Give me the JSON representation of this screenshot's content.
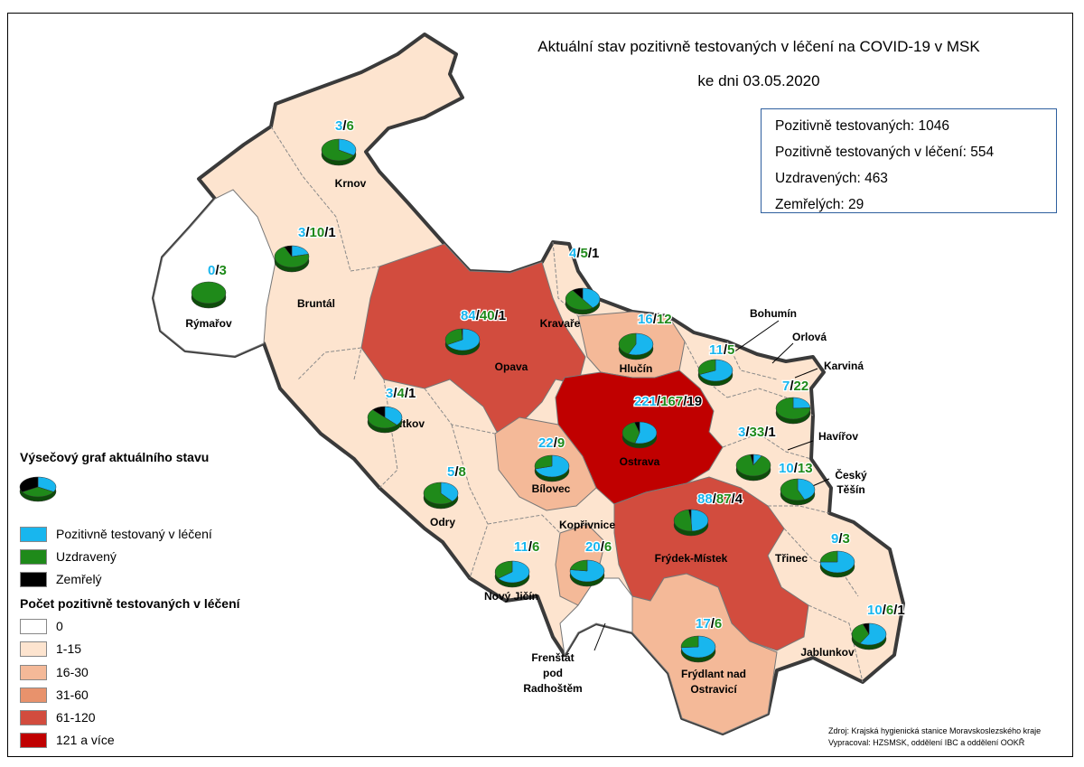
{
  "title": {
    "line1": "Aktuální stav pozitivně testovaných v léčení na COVID-19 v MSK",
    "line2": "ke dni 03.05.2020"
  },
  "summary": {
    "positive": "Pozitivně testovaných: 1046",
    "in_treatment": "Pozitivně testovaných v léčení: 554",
    "recovered": "Uzdravených: 463",
    "deceased": "Zemřelých: 29"
  },
  "legend": {
    "pie_title": "Výsečový graf aktuálního stavu",
    "in_treatment": "Pozitivně testovaný v léčení",
    "recovered": "Uzdravený",
    "deceased": "Zemřelý",
    "count_title": "Počet pozitivně testovaných v léčení",
    "classes": [
      {
        "label": "0",
        "color": "#ffffff"
      },
      {
        "label": "1-15",
        "color": "#fde4cf"
      },
      {
        "label": "16-30",
        "color": "#f4b998"
      },
      {
        "label": "31-60",
        "color": "#e8926c"
      },
      {
        "label": "61-120",
        "color": "#d24c3e"
      },
      {
        "label": "121 a více",
        "color": "#c00000"
      }
    ]
  },
  "colors": {
    "in_treatment": "#18b6ee",
    "recovered": "#1f8a1a",
    "deceased": "#000000"
  },
  "source": {
    "line1": "Zdroj: Krajská hygienická stanice Moravskoslezského kraje",
    "line2": "Vypracoval: HZSMSK, oddělení IBC a oddělení OOKŘ"
  },
  "districts": [
    {
      "name": "Krnov",
      "in_treatment": 3,
      "recovered": 6,
      "deceased": null
    },
    {
      "name": "Bruntál",
      "in_treatment": 3,
      "recovered": 10,
      "deceased": 1
    },
    {
      "name": "Rýmařov",
      "in_treatment": 0,
      "recovered": 3,
      "deceased": null
    },
    {
      "name": "Opava",
      "in_treatment": 84,
      "recovered": 40,
      "deceased": 1
    },
    {
      "name": "Kravaře",
      "in_treatment": 4,
      "recovered": 5,
      "deceased": 1
    },
    {
      "name": "Hlučín",
      "in_treatment": 16,
      "recovered": 12,
      "deceased": null
    },
    {
      "name": "Bohumín",
      "in_treatment": 11,
      "recovered": 5,
      "deceased": null
    },
    {
      "name": "Orlová",
      "in_treatment": null,
      "recovered": null,
      "deceased": null
    },
    {
      "name": "Karviná",
      "in_treatment": 7,
      "recovered": 22,
      "deceased": null
    },
    {
      "name": "Vítkov",
      "in_treatment": 3,
      "recovered": 4,
      "deceased": 1
    },
    {
      "name": "Ostrava",
      "in_treatment": 221,
      "recovered": 167,
      "deceased": 19
    },
    {
      "name": "Havířov",
      "in_treatment": 3,
      "recovered": 33,
      "deceased": 1
    },
    {
      "name": "Bílovec",
      "in_treatment": 22,
      "recovered": 9,
      "deceased": null
    },
    {
      "name": "Odry",
      "in_treatment": 5,
      "recovered": 8,
      "deceased": null
    },
    {
      "name": "Český Těšín",
      "in_treatment": 10,
      "recovered": 13,
      "deceased": null
    },
    {
      "name": "Kopřivnice",
      "in_treatment": 20,
      "recovered": 6,
      "deceased": null
    },
    {
      "name": "Frýdek-Místek",
      "in_treatment": 88,
      "recovered": 87,
      "deceased": 4
    },
    {
      "name": "Nový Jičín",
      "in_treatment": 11,
      "recovered": 6,
      "deceased": null
    },
    {
      "name": "Třinec",
      "in_treatment": 9,
      "recovered": 3,
      "deceased": null
    },
    {
      "name": "Frenštát pod Radhoštěm",
      "in_treatment": 0,
      "recovered": null,
      "deceased": null
    },
    {
      "name": "Frýdlant nad Ostravicí",
      "in_treatment": 17,
      "recovered": 6,
      "deceased": null
    },
    {
      "name": "Jablunkov",
      "in_treatment": 10,
      "recovered": 6,
      "deceased": 1
    }
  ]
}
